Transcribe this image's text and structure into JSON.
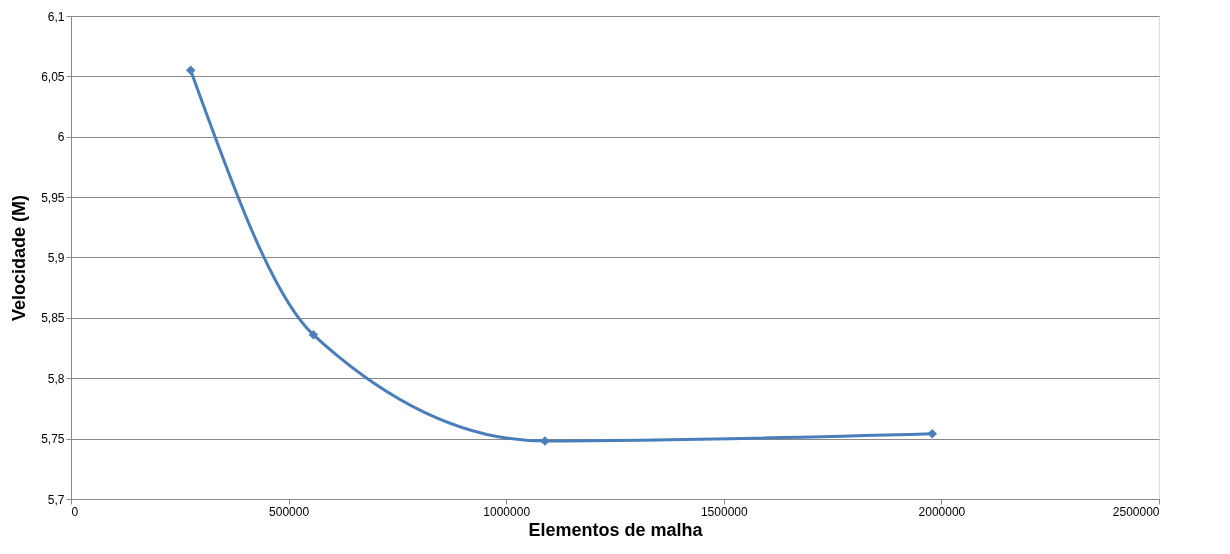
{
  "chart_data": {
    "type": "line",
    "xlabel": "Elementos de malha",
    "ylabel": "Velocidade (M)",
    "x": [
      275000,
      557000,
      1089000,
      1979000
    ],
    "series": [
      {
        "color": "#4a7ebb",
        "values": [
          6.055,
          5.836,
          5.748,
          5.754
        ]
      }
    ],
    "xlim": [
      0,
      2500000
    ],
    "xticks": [
      0,
      500000,
      1000000,
      1500000,
      2000000,
      2500000
    ],
    "ylim": [
      5.7,
      6.1
    ],
    "yticks": [
      {
        "value": 5.7,
        "label": "5,7"
      },
      {
        "value": 5.75,
        "label": "5,75"
      },
      {
        "value": 5.8,
        "label": "5,8"
      },
      {
        "value": 5.85,
        "label": "5,85"
      },
      {
        "value": 5.9,
        "label": "5,9"
      },
      {
        "value": 5.95,
        "label": "5,95"
      },
      {
        "value": 6,
        "label": "6"
      },
      {
        "value": 6.05,
        "label": "6,05"
      },
      {
        "value": 6.1,
        "label": "6,1"
      }
    ],
    "grid": "y",
    "marker": "diamond",
    "line_style": "solid"
  }
}
